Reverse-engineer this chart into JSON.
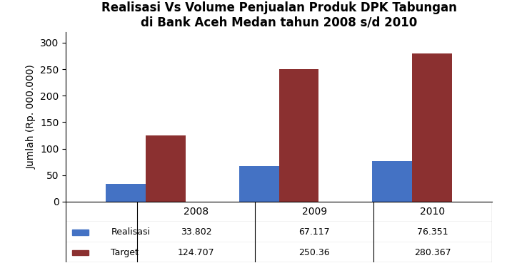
{
  "title_line1": "Realisasi Vs Volume Penjualan Produk DPK Tabungan",
  "title_line2": "di Bank Aceh Medan tahun 2008 s/d 2010",
  "years": [
    "2008",
    "2009",
    "2010"
  ],
  "realisasi": [
    33.802,
    67.117,
    76.351
  ],
  "target": [
    124.707,
    250.36,
    280.367
  ],
  "ylabel": "Jumlah (Rp. 000.000)",
  "ylim": [
    0,
    320
  ],
  "yticks": [
    0,
    50,
    100,
    150,
    200,
    250,
    300
  ],
  "bar_color_realisasi": "#4472C4",
  "bar_color_target": "#8B3030",
  "legend_realisasi": "Realisasi",
  "legend_target": "Target",
  "table_realisasi": [
    "33.802",
    "67.117",
    "76.351"
  ],
  "table_target": [
    "124.707",
    "250.36",
    "280.367"
  ],
  "background_color": "#ffffff",
  "title_fontsize": 12,
  "axis_fontsize": 10,
  "bar_width": 0.3
}
